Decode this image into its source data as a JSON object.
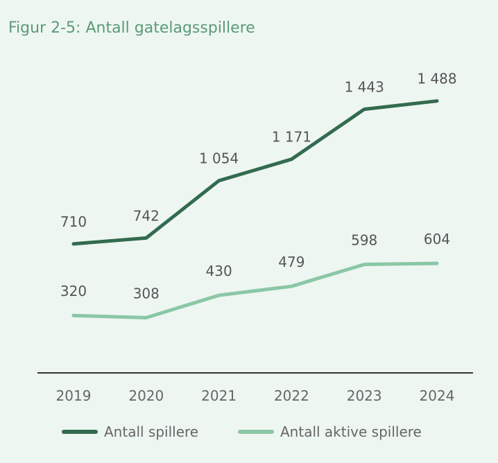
{
  "chart_data": {
    "type": "line",
    "title": "Figur 2-5: Antall gatelagsspillere",
    "categories": [
      "2019",
      "2020",
      "2021",
      "2022",
      "2023",
      "2024"
    ],
    "series": [
      {
        "name": "Antall spillere",
        "values": [
          710,
          742,
          1054,
          1171,
          1443,
          1488
        ],
        "labels": [
          "710",
          "742",
          "1 054",
          "1 171",
          "1 443",
          "1 488"
        ],
        "color": "#336b4f"
      },
      {
        "name": "Antall aktive spillere",
        "values": [
          320,
          308,
          430,
          479,
          598,
          604
        ],
        "labels": [
          "320",
          "308",
          "430",
          "479",
          "598",
          "604"
        ],
        "color": "#8ac7a6"
      }
    ],
    "ylim": [
      0,
      1600
    ],
    "grid": false,
    "legend": "bottom",
    "colors": {
      "background": "#eef6f1",
      "title": "#5a9a78",
      "axis": "#333333"
    }
  }
}
